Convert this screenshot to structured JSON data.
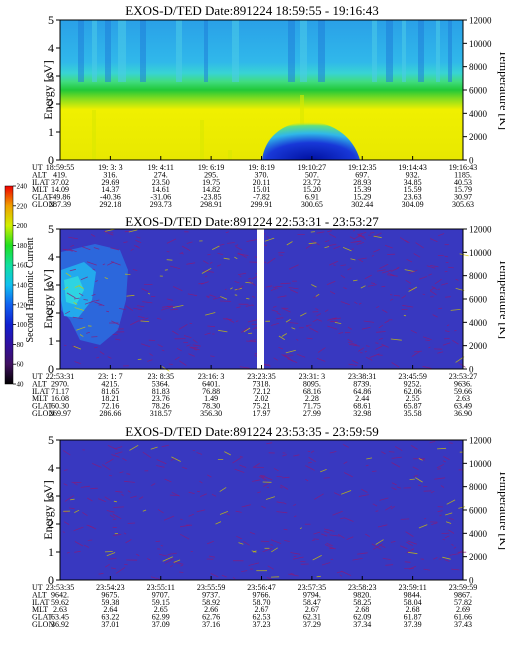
{
  "chart_data": [
    {
      "type": "heatmap",
      "title": "EXOS-D/TED   Date:891224  18:59:55 - 19:16:43",
      "ylabel": "Energy [eV]",
      "ylabel_right": "Temperature [K]",
      "ylim": [
        0,
        5
      ],
      "ylim_right": [
        0,
        12000
      ],
      "yticks": [
        "0",
        "1",
        "2",
        "3",
        "4",
        "5"
      ],
      "yticks_right": [
        "0",
        "2000",
        "4000",
        "6000",
        "8000",
        "10000",
        "12000"
      ],
      "xtick_times": [
        "18:59:55",
        "19: 3: 3",
        "19: 4:11",
        "19: 6:19",
        "19: 8:19",
        "19:10:27",
        "19:12:35",
        "19:14:43",
        "19:16:43"
      ],
      "ephemeris": [
        {
          "label": "UT",
          "values": [
            "18:59:55",
            "19: 3: 3",
            "19: 4:11",
            "19: 6:19",
            "19: 8:19",
            "19:10:27",
            "19:12:35",
            "19:14:43",
            "19:16:43"
          ]
        },
        {
          "label": "ALT",
          "values": [
            "419.",
            "316.",
            "274.",
            "295.",
            "370.",
            "507.",
            "697.",
            "932.",
            "1185."
          ]
        },
        {
          "label": "ILAT",
          "values": [
            "37.02",
            "29.69",
            "23.50",
            "19.75",
            "20.11",
            "23.72",
            "28.93",
            "34.85",
            "40.53"
          ]
        },
        {
          "label": "MLT",
          "values": [
            "14.09",
            "14.37",
            "14.61",
            "14.82",
            "15.01",
            "15.20",
            "15.39",
            "15.59",
            "15.79"
          ]
        },
        {
          "label": "GLAT",
          "values": [
            "-49.86",
            "-40.36",
            "-31.06",
            "-23.85",
            "-7.82",
            "6.91",
            "15.29",
            "23.63",
            "30.97"
          ]
        },
        {
          "label": "GLON",
          "values": [
            "287.39",
            "292.18",
            "293.73",
            "298.91",
            "299.91",
            "300.65",
            "302.44",
            "304.09",
            "305.63"
          ]
        }
      ],
      "color_bands": "blue above ~3.2 eV, green 2.4-3.0 eV, yellow below, with a dark-blue dome near 1.0 eV centered around 19:08-19:10"
    },
    {
      "type": "heatmap",
      "title": "EXOS-D/TED   Date:891224  22:53:31 - 23:53:27",
      "ylabel": "Energy [eV]",
      "ylabel_right": "Temperature [K]",
      "ylim": [
        0,
        5
      ],
      "ylim_right": [
        0,
        12000
      ],
      "yticks": [
        "0",
        "1",
        "2",
        "3",
        "4",
        "5"
      ],
      "yticks_right": [
        "0",
        "2000",
        "4000",
        "6000",
        "8000",
        "10000",
        "12000"
      ],
      "colorbar": {
        "label": "Second Harmonic Current",
        "ticks": [
          "40",
          "60",
          "80",
          "100",
          "120",
          "140",
          "160",
          "180",
          "200",
          "220",
          "240"
        ]
      },
      "xtick_times": [
        "22:53:31",
        "23: 1: 7",
        "23: 8:35",
        "23:16: 3",
        "23:23:35",
        "23:31: 3",
        "23:38:31",
        "23:45:59",
        "23:53:27"
      ],
      "ephemeris": [
        {
          "label": "UT",
          "values": [
            "22:53:31",
            "23: 1: 7",
            "23: 8:35",
            "23:16: 3",
            "23:23:35",
            "23:31: 3",
            "23:38:31",
            "23:45:59",
            "23:53:27"
          ]
        },
        {
          "label": "ALT",
          "values": [
            "2970.",
            "4215.",
            "5364.",
            "6401.",
            "7318.",
            "8095.",
            "8739.",
            "9252.",
            "9636."
          ]
        },
        {
          "label": "ILAT",
          "values": [
            "71.17",
            "81.65",
            "81.83",
            "76.88",
            "72.12",
            "68.16",
            "64.86",
            "62.06",
            "59.66"
          ]
        },
        {
          "label": "MLT",
          "values": [
            "16.08",
            "18.21",
            "23.76",
            "1.49",
            "2.02",
            "2.28",
            "2.44",
            "2.55",
            "2.63"
          ]
        },
        {
          "label": "GLAT",
          "values": [
            "60.30",
            "72.16",
            "78.26",
            "78.30",
            "75.21",
            "71.75",
            "68.61",
            "65.87",
            "63.49"
          ]
        },
        {
          "label": "GLON",
          "values": [
            "269.97",
            "286.66",
            "318.57",
            "356.30",
            "17.97",
            "27.99",
            "32.98",
            "35.58",
            "36.90"
          ]
        }
      ]
    },
    {
      "type": "heatmap",
      "title": "EXOS-D/TED   Date:891224  23:53:35 - 23:59:59",
      "ylabel": "Energy [eV]",
      "ylabel_right": "Temperature [K]",
      "ylim": [
        0,
        5
      ],
      "ylim_right": [
        0,
        12000
      ],
      "yticks": [
        "0",
        "1",
        "2",
        "3",
        "4",
        "5"
      ],
      "yticks_right": [
        "0",
        "2000",
        "4000",
        "6000",
        "8000",
        "10000",
        "12000"
      ],
      "xtick_times": [
        "23:53:35",
        "23:54:23",
        "23:55:11",
        "23:55:59",
        "23:56:47",
        "23:57:35",
        "23:58:23",
        "23:59:11",
        "23:59:59"
      ],
      "ephemeris": [
        {
          "label": "UT",
          "values": [
            "23:53:35",
            "23:54:23",
            "23:55:11",
            "23:55:59",
            "23:56:47",
            "23:57:35",
            "23:58:23",
            "23:59:11",
            "23:59:59"
          ]
        },
        {
          "label": "ALT",
          "values": [
            "9642.",
            "9675.",
            "9707.",
            "9737.",
            "9766.",
            "9794.",
            "9820.",
            "9844.",
            "9867."
          ]
        },
        {
          "label": "ILAT",
          "values": [
            "59.62",
            "59.38",
            "59.15",
            "58.92",
            "58.70",
            "58.47",
            "58.25",
            "58.04",
            "57.82"
          ]
        },
        {
          "label": "MLT",
          "values": [
            "2.63",
            "2.64",
            "2.65",
            "2.66",
            "2.67",
            "2.67",
            "2.68",
            "2.68",
            "2.69"
          ]
        },
        {
          "label": "GLAT",
          "values": [
            "63.45",
            "63.22",
            "62.99",
            "62.76",
            "62.53",
            "62.31",
            "62.09",
            "61.87",
            "61.66"
          ]
        },
        {
          "label": "GLON",
          "values": [
            "36.92",
            "37.01",
            "37.09",
            "37.16",
            "37.23",
            "37.29",
            "37.34",
            "37.39",
            "37.43"
          ]
        }
      ]
    }
  ],
  "colors": {
    "blue": "#2040c8",
    "cyan_blue": "#2aa8e8",
    "cyan": "#36d2dc",
    "green": "#22c83c",
    "yellow": "#f0f000",
    "dark_blue": "#0010a0",
    "panel_blue": "#3636c0",
    "noise": "#8c1a70"
  }
}
